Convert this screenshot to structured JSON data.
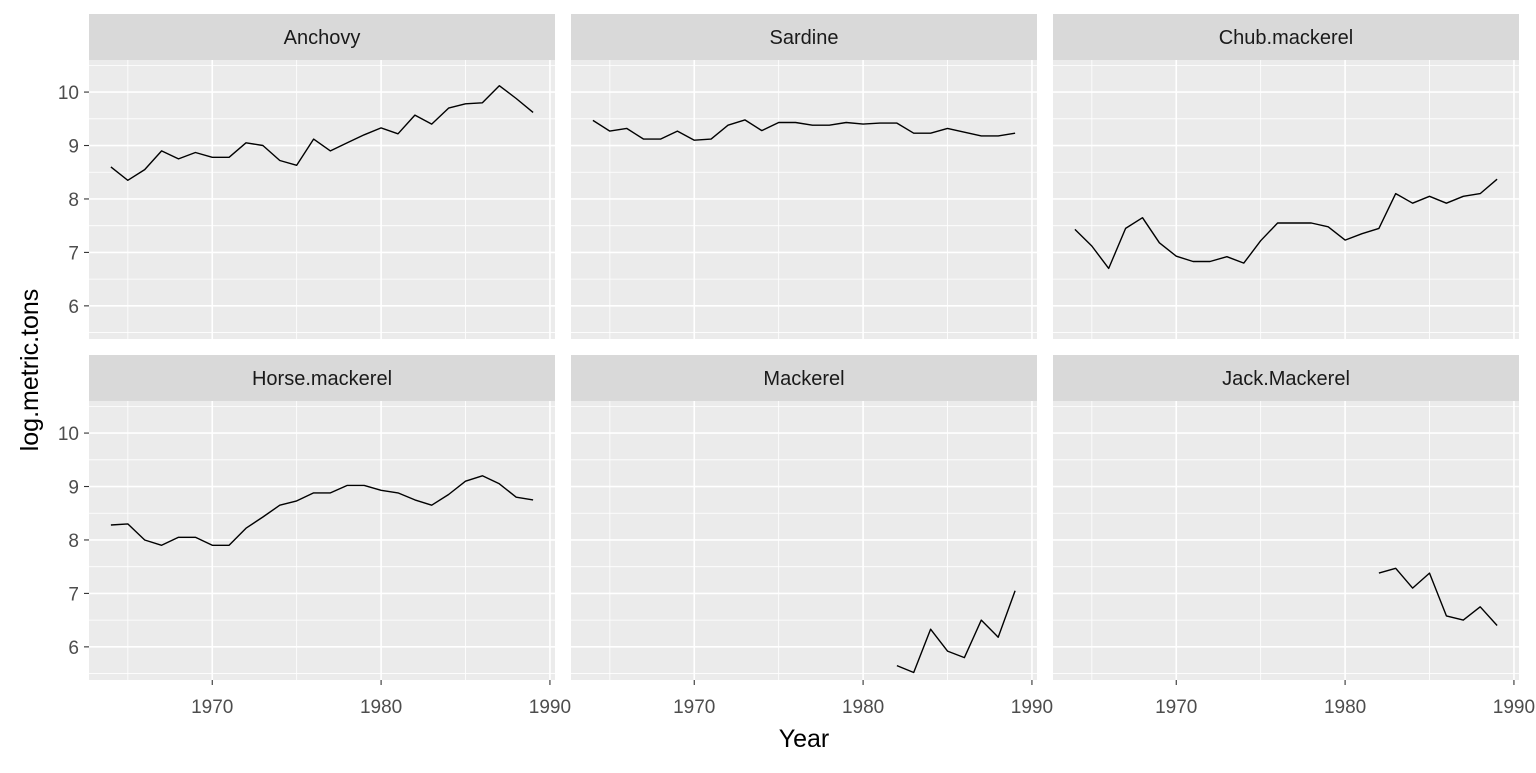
{
  "chart_data": {
    "type": "line",
    "xlabel": "Year",
    "ylabel": "log.metric.tons",
    "xlim": [
      1962.7,
      1990.3
    ],
    "ylim": [
      5.38,
      10.6
    ],
    "x_ticks": [
      1970,
      1980,
      1990
    ],
    "y_ticks": [
      6,
      7,
      8,
      9,
      10
    ],
    "x_tick_labels": [
      "1970",
      "1980",
      "1990"
    ],
    "y_tick_labels": [
      "6",
      "7",
      "8",
      "9",
      "10"
    ],
    "grid": true,
    "legend": "none",
    "colors": {
      "panel_bg": "#ebebeb",
      "strip_bg": "#d9d9d9",
      "grid": "#ffffff",
      "line": "#000000",
      "tick_text": "#4d4d4d"
    },
    "series": [
      {
        "name": "Anchovy",
        "x": [
          1964,
          1965,
          1966,
          1967,
          1968,
          1969,
          1970,
          1971,
          1972,
          1973,
          1974,
          1975,
          1976,
          1977,
          1978,
          1979,
          1980,
          1981,
          1982,
          1983,
          1984,
          1985,
          1986,
          1987,
          1988,
          1989
        ],
        "values": [
          8.6,
          8.35,
          8.55,
          8.9,
          8.75,
          8.87,
          8.78,
          8.78,
          9.05,
          9.0,
          8.72,
          8.63,
          9.12,
          8.9,
          9.05,
          9.2,
          9.33,
          9.22,
          9.57,
          9.4,
          9.7,
          9.78,
          9.8,
          10.12,
          9.88,
          9.62
        ]
      },
      {
        "name": "Sardine",
        "x": [
          1964,
          1965,
          1966,
          1967,
          1968,
          1969,
          1970,
          1971,
          1972,
          1973,
          1974,
          1975,
          1976,
          1977,
          1978,
          1979,
          1980,
          1981,
          1982,
          1983,
          1984,
          1985,
          1986,
          1987,
          1988,
          1989
        ],
        "values": [
          9.47,
          9.27,
          9.32,
          9.12,
          9.12,
          9.27,
          9.1,
          9.12,
          9.38,
          9.48,
          9.28,
          9.43,
          9.43,
          9.38,
          9.38,
          9.43,
          9.4,
          9.42,
          9.42,
          9.23,
          9.23,
          9.32,
          9.25,
          9.18,
          9.18,
          9.23
        ]
      },
      {
        "name": "Chub.mackerel",
        "x": [
          1964,
          1965,
          1966,
          1967,
          1968,
          1969,
          1970,
          1971,
          1972,
          1973,
          1974,
          1975,
          1976,
          1977,
          1978,
          1979,
          1980,
          1981,
          1982,
          1983,
          1984,
          1985,
          1986,
          1987,
          1988,
          1989
        ],
        "values": [
          7.43,
          7.12,
          6.7,
          7.45,
          7.65,
          7.18,
          6.93,
          6.83,
          6.83,
          6.92,
          6.8,
          7.22,
          7.55,
          7.55,
          7.55,
          7.48,
          7.23,
          7.35,
          7.45,
          8.1,
          7.92,
          8.05,
          7.92,
          8.05,
          8.1,
          8.37
        ]
      },
      {
        "name": "Horse.mackerel",
        "x": [
          1964,
          1965,
          1966,
          1967,
          1968,
          1969,
          1970,
          1971,
          1972,
          1973,
          1974,
          1975,
          1976,
          1977,
          1978,
          1979,
          1980,
          1981,
          1982,
          1983,
          1984,
          1985,
          1986,
          1987,
          1988,
          1989
        ],
        "values": [
          8.28,
          8.3,
          8.0,
          7.9,
          8.05,
          8.05,
          7.9,
          7.9,
          8.22,
          8.43,
          8.65,
          8.73,
          8.88,
          8.88,
          9.02,
          9.02,
          8.93,
          8.88,
          8.75,
          8.65,
          8.85,
          9.1,
          9.2,
          9.05,
          8.8,
          8.75
        ]
      },
      {
        "name": "Mackerel",
        "x": [
          1982,
          1983,
          1984,
          1985,
          1986,
          1987,
          1988,
          1989
        ],
        "values": [
          5.65,
          5.52,
          6.33,
          5.92,
          5.8,
          6.5,
          6.18,
          7.05
        ]
      },
      {
        "name": "Jack.Mackerel",
        "x": [
          1982,
          1983,
          1984,
          1985,
          1986,
          1987,
          1988,
          1989
        ],
        "values": [
          7.38,
          7.47,
          7.1,
          7.38,
          6.58,
          6.5,
          6.75,
          6.4
        ]
      }
    ]
  }
}
